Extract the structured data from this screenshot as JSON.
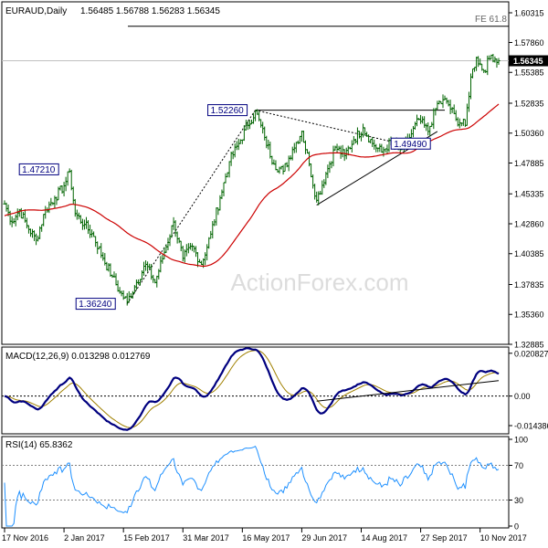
{
  "chart_data": [
    {
      "type": "ohlc",
      "title": "EURAUD,Daily",
      "ohlc_values": "1.56485 1.56788 1.56283 1.56345",
      "watermark": "ActionForex.com",
      "ylim": [
        1.32885,
        1.60315
      ],
      "y_ticks": [
        "1.60315",
        "1.57860",
        "1.55385",
        "1.52835",
        "1.50360",
        "1.47885",
        "1.45335",
        "1.42860",
        "1.40385",
        "1.37835",
        "1.35360",
        "1.32885"
      ],
      "last_price": 1.56345,
      "last_price_label": "1.56345",
      "x_ticks": [
        "17 Nov 2016",
        "2 Jan 2017",
        "15 Feb 2017",
        "31 Mar 2017",
        "16 May 2017",
        "29 Jun 2017",
        "14 Aug 2017",
        "27 Sep 2017",
        "10 Nov 2017"
      ],
      "anchors": [
        [
          "2016-11-17",
          1.445
        ],
        [
          "2016-11-23",
          1.43
        ],
        [
          "2016-11-29",
          1.44
        ],
        [
          "2016-12-05",
          1.427
        ],
        [
          "2016-12-12",
          1.415
        ],
        [
          "2016-12-19",
          1.44
        ],
        [
          "2016-12-26",
          1.45
        ],
        [
          "2017-01-02",
          1.46
        ],
        [
          "2017-01-05",
          1.472
        ],
        [
          "2017-01-10",
          1.437
        ],
        [
          "2017-01-17",
          1.428
        ],
        [
          "2017-01-24",
          1.418
        ],
        [
          "2017-01-31",
          1.4
        ],
        [
          "2017-02-07",
          1.385
        ],
        [
          "2017-02-13",
          1.372
        ],
        [
          "2017-02-17",
          1.364
        ],
        [
          "2017-02-24",
          1.38
        ],
        [
          "2017-03-03",
          1.395
        ],
        [
          "2017-03-10",
          1.38
        ],
        [
          "2017-03-17",
          1.405
        ],
        [
          "2017-03-24",
          1.43
        ],
        [
          "2017-03-31",
          1.4
        ],
        [
          "2017-04-07",
          1.41
        ],
        [
          "2017-04-14",
          1.395
        ],
        [
          "2017-04-21",
          1.42
        ],
        [
          "2017-04-28",
          1.45
        ],
        [
          "2017-05-05",
          1.48
        ],
        [
          "2017-05-12",
          1.495
        ],
        [
          "2017-05-19",
          1.51
        ],
        [
          "2017-05-25",
          1.522
        ],
        [
          "2017-06-01",
          1.5
        ],
        [
          "2017-06-08",
          1.478
        ],
        [
          "2017-06-15",
          1.472
        ],
        [
          "2017-06-22",
          1.49
        ],
        [
          "2017-06-29",
          1.505
        ],
        [
          "2017-07-05",
          1.478
        ],
        [
          "2017-07-11",
          1.448
        ],
        [
          "2017-07-18",
          1.47
        ],
        [
          "2017-07-25",
          1.492
        ],
        [
          "2017-08-01",
          1.485
        ],
        [
          "2017-08-08",
          1.498
        ],
        [
          "2017-08-15",
          1.508
        ],
        [
          "2017-08-22",
          1.495
        ],
        [
          "2017-08-29",
          1.488
        ],
        [
          "2017-09-05",
          1.496
        ],
        [
          "2017-09-12",
          1.49
        ],
        [
          "2017-09-19",
          1.5
        ],
        [
          "2017-09-26",
          1.515
        ],
        [
          "2017-10-03",
          1.505
        ],
        [
          "2017-10-10",
          1.528
        ],
        [
          "2017-10-17",
          1.53
        ],
        [
          "2017-10-24",
          1.515
        ],
        [
          "2017-10-31",
          1.51
        ],
        [
          "2017-11-03",
          1.55
        ],
        [
          "2017-11-08",
          1.566
        ],
        [
          "2017-11-14",
          1.555
        ],
        [
          "2017-11-20",
          1.568
        ],
        [
          "2017-11-24",
          1.5635
        ]
      ],
      "price_labels": [
        {
          "text": "1.47210",
          "date": "2017-01-05",
          "value": 1.4721
        },
        {
          "text": "1.52260",
          "date": "2017-05-25",
          "value": 1.5226
        },
        {
          "text": "1.36240",
          "date": "2017-02-17",
          "value": 1.3624
        },
        {
          "text": "1.49490",
          "date": "2017-09-12",
          "value": 1.4949
        }
      ],
      "fe_label": "FE 61.8",
      "fe_level": 1.592,
      "series": [
        {
          "name": "SMA 55",
          "color": "#cc0000",
          "ma_period": 55
        }
      ],
      "trendlines": [
        {
          "kind": "solid",
          "x1": "2017-05-25",
          "y1": 1.5226,
          "x2": "2017-10-14",
          "y2": 1.5226
        },
        {
          "kind": "solid",
          "x1": "2017-07-11",
          "y1": 1.444,
          "x2": "2017-10-10",
          "y2": 1.505
        },
        {
          "kind": "dotted",
          "x1": "2017-02-17",
          "y1": 1.3624,
          "x2": "2017-05-25",
          "y2": 1.5226
        },
        {
          "kind": "dotted",
          "x1": "2017-05-25",
          "y1": 1.5226,
          "x2": "2017-09-12",
          "y2": 1.4949
        }
      ]
    },
    {
      "type": "line",
      "title": "MACD(12,26,9) 0.013298 0.012769",
      "ylim": [
        -0.0175,
        0.0225
      ],
      "y_ticks": [
        {
          "label": "0.020827",
          "value": 0.020827
        },
        {
          "label": "0.00",
          "value": 0.0
        },
        {
          "label": "-0.014386",
          "value": -0.014386
        }
      ],
      "series": [
        {
          "name": "MACD",
          "color": "#00007f"
        },
        {
          "name": "Signal",
          "color": "#a08000"
        }
      ],
      "trendline": {
        "x1": "2017-07-11",
        "y1": -0.0025,
        "x2": "2017-11-24",
        "y2": 0.0075
      }
    },
    {
      "type": "line",
      "title": "RSI(14) 65.8362",
      "ylim": [
        0,
        100
      ],
      "y_ticks": [
        {
          "label": "100",
          "value": 100
        },
        {
          "label": "70",
          "value": 70
        },
        {
          "label": "30",
          "value": 30
        },
        {
          "label": "0",
          "value": 0
        }
      ],
      "series": [
        {
          "name": "RSI",
          "color": "#1e90ff"
        }
      ]
    }
  ]
}
